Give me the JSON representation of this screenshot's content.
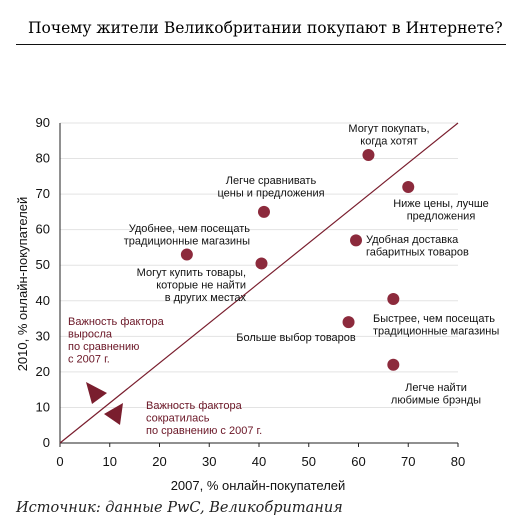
{
  "title": "Почему жители Великобритании покупают в Интернете?",
  "source": "Источник: данные PwC, Великобритания",
  "colors": {
    "point": "#8c2a3c",
    "diagonal": "#7a1e2e",
    "annotation": "#6a1525",
    "axis": "#222222",
    "grid": "#e3e3e3"
  },
  "chart_data": {
    "type": "scatter",
    "xlabel": "2007, % онлайн-покупателей",
    "ylabel": "2010, % онлайн-покупателей",
    "xlim": [
      0,
      80
    ],
    "ylim": [
      0,
      90
    ],
    "xticks": [
      0,
      10,
      20,
      30,
      40,
      50,
      60,
      70,
      80
    ],
    "yticks": [
      0,
      10,
      20,
      30,
      40,
      50,
      60,
      70,
      80,
      90
    ],
    "reference_line": {
      "from": [
        0,
        0
      ],
      "to": [
        80,
        90
      ]
    },
    "points": [
      {
        "x": 62,
        "y": 81,
        "label": [
          "Могут покупать,",
          "когда хотят"
        ]
      },
      {
        "x": 70,
        "y": 72,
        "label": [
          "Ниже цены, лучше",
          "предложения"
        ]
      },
      {
        "x": 41,
        "y": 65,
        "label": [
          "Легче сравнивать",
          "цены и предложения"
        ]
      },
      {
        "x": 59.5,
        "y": 57,
        "label": [
          "Удобная доставка",
          "габаритных товаров"
        ]
      },
      {
        "x": 25.5,
        "y": 53,
        "label": [
          "Удобнее, чем посещать",
          "традиционные магазины"
        ]
      },
      {
        "x": 40.5,
        "y": 50.5,
        "label": [
          "Могут купить товары,",
          "которые не найти",
          "в других местах"
        ]
      },
      {
        "x": 67,
        "y": 40.5,
        "label": [
          "Быстрее, чем посещать",
          "традиционные магазины"
        ]
      },
      {
        "x": 58,
        "y": 34,
        "label": [
          "Больше выбор товаров"
        ]
      },
      {
        "x": 67,
        "y": 22,
        "label": [
          "Легче найти",
          "любимые брэнды"
        ]
      }
    ],
    "annotations": [
      {
        "text": [
          "Важность фактора",
          "выросла",
          "по сравнению",
          "с 2007 г."
        ]
      },
      {
        "text": [
          "Важность фактора",
          "сократилась",
          "по сравнению с 2007 г."
        ]
      }
    ]
  }
}
